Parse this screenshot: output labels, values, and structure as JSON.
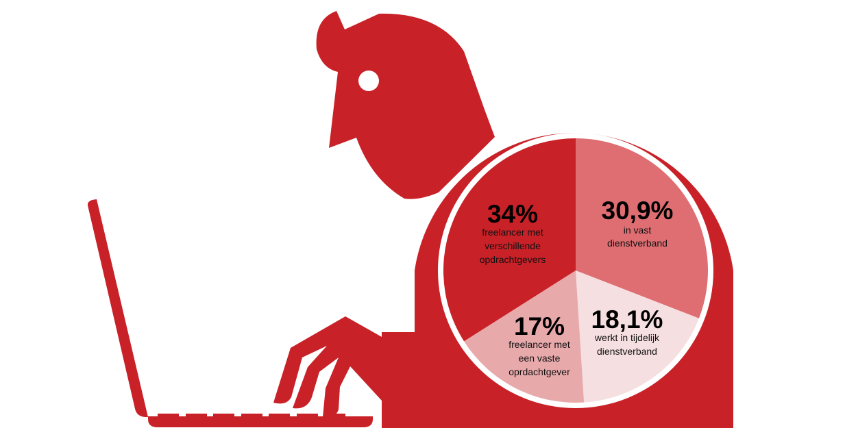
{
  "colors": {
    "brand_red": "#c92128",
    "background": "#ffffff"
  },
  "chart_data": {
    "type": "pie",
    "start": "top",
    "direction": "clockwise",
    "slices": [
      {
        "value": 30.9,
        "label_value": "30,9%",
        "label_lines": [
          "in vast",
          "dienstverband"
        ],
        "color": "#de6e72"
      },
      {
        "value": 18.1,
        "label_value": "18,1%",
        "label_lines": [
          "werkt in tijdelijk",
          "dienstverband"
        ],
        "color": "#f6dfe0"
      },
      {
        "value": 17,
        "label_value": "17%",
        "label_lines": [
          "freelancer met",
          "een vaste",
          "oprdachtgever"
        ],
        "color": "#e8a9ab"
      },
      {
        "value": 34,
        "label_value": "34%",
        "label_lines": [
          "freelancer met",
          "verschillende",
          "opdrachtgevers"
        ],
        "color": "#c92128"
      }
    ]
  }
}
